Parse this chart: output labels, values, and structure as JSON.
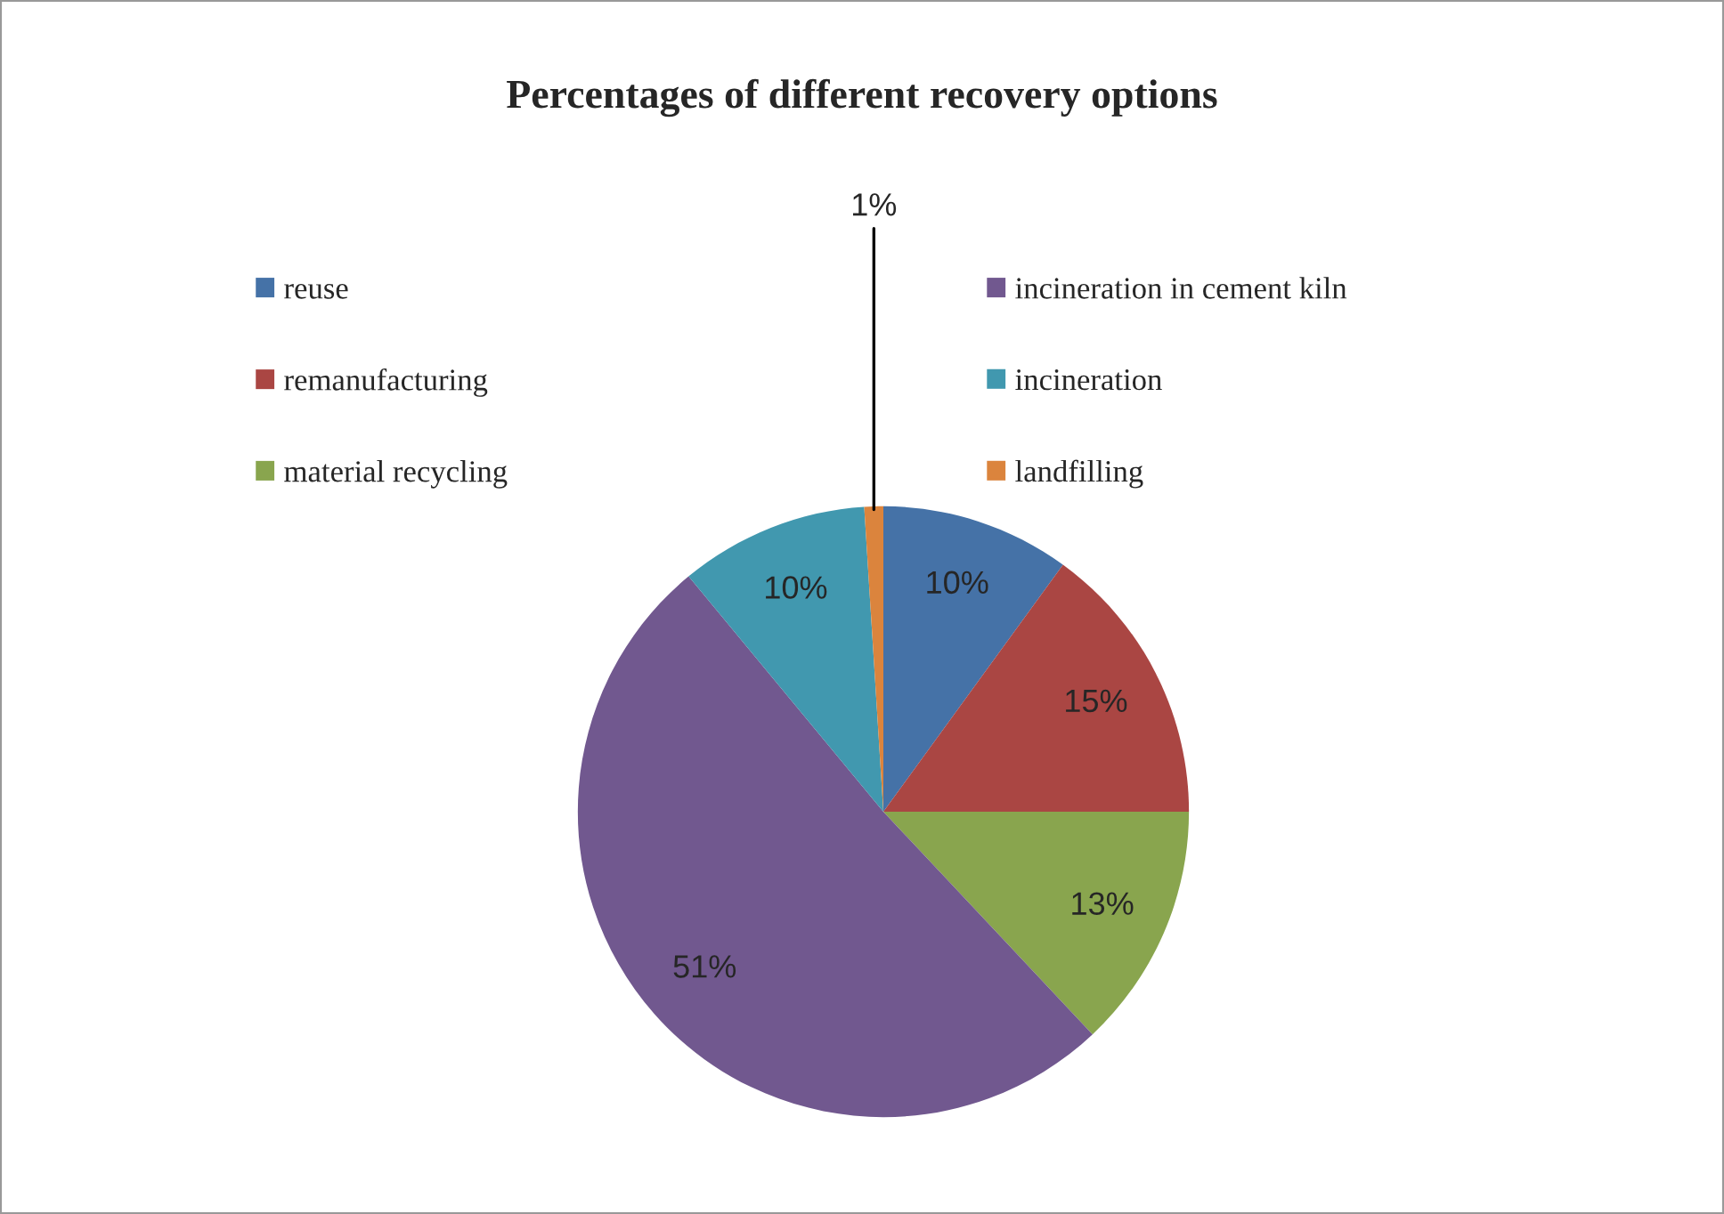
{
  "chart_data": {
    "type": "pie",
    "title": "Percentages of different recovery options",
    "categories": [
      "reuse",
      "remanufacturing",
      "material recycling",
      "incineration in cement kiln",
      "incineration",
      "landfilling"
    ],
    "values": [
      10,
      15,
      13,
      51,
      10,
      1
    ],
    "colors": [
      "#4572a7",
      "#aa4643",
      "#89a54e",
      "#71588f",
      "#4198af",
      "#db843d"
    ],
    "value_labels": [
      "10%",
      "15%",
      "13%",
      "51%",
      "10%",
      "1%"
    ],
    "legend": "top"
  }
}
